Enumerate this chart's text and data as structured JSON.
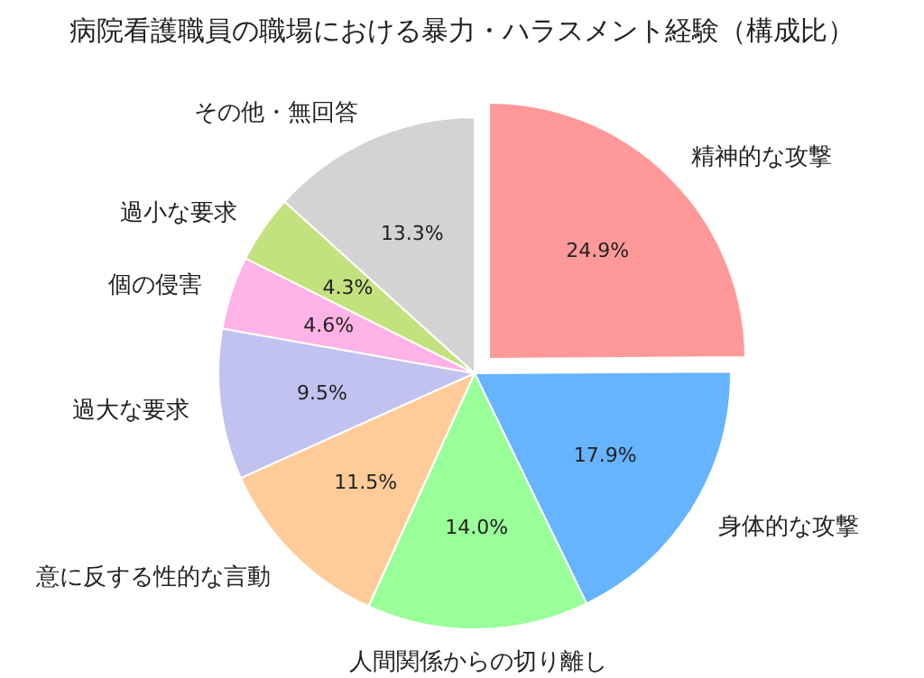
{
  "chart_data": {
    "type": "pie",
    "title": "病院看護職員の職場における暴力・ハラスメント経験（構成比）",
    "categories": [
      "精神的な攻撃",
      "身体的な攻撃",
      "人間関係からの切り離し",
      "意に反する性的な言動",
      "過大な要求",
      "個の侵害",
      "過小な要求",
      "その他・無回答"
    ],
    "values": [
      24.9,
      17.9,
      14.0,
      11.5,
      9.5,
      4.6,
      4.3,
      13.3
    ],
    "colors": [
      "#ff9999",
      "#66b3ff",
      "#99ff99",
      "#ffcc99",
      "#c2c2f0",
      "#ffb3e6",
      "#c4e17f",
      "#d3d3d3"
    ],
    "value_labels": [
      "24.9%",
      "17.9%",
      "14.0%",
      "11.5%",
      "9.5%",
      "4.6%",
      "4.3%",
      "13.3%"
    ],
    "legend": false
  }
}
